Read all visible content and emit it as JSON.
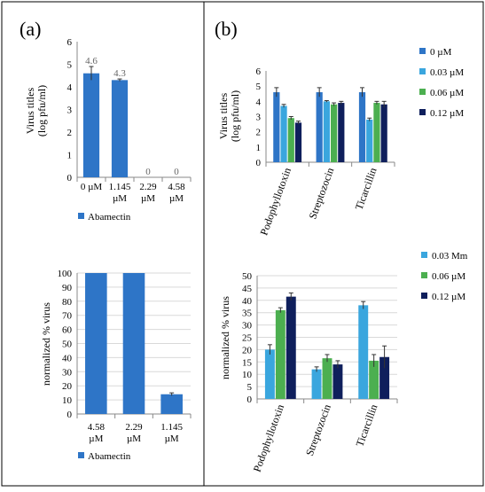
{
  "colors": {
    "blue": "#2E75C7",
    "lightblue": "#3AA6DE",
    "green": "#4CAF50",
    "navy": "#0F1F5C",
    "border": "#000000",
    "axis": "#888888",
    "grid": "#D9D9D9",
    "datalabel": "#666666"
  },
  "panels": {
    "a_label": "(a)",
    "b_label": "(b)"
  },
  "chart_data": [
    {
      "id": "a_top",
      "type": "bar",
      "ylabel": [
        "Virus titles",
        "(log pfu/ml)"
      ],
      "ylim": [
        0,
        6
      ],
      "yticks": [
        0,
        1,
        2,
        3,
        4,
        5,
        6
      ],
      "grid": false,
      "categories": [
        [
          "0 µM",
          ""
        ],
        [
          "1.145",
          "µM"
        ],
        [
          "2.29",
          "µM"
        ],
        [
          "4.58",
          "µM"
        ]
      ],
      "series": [
        {
          "name": "Abamectin",
          "color": "blue",
          "values": [
            4.6,
            4.3,
            0,
            0
          ],
          "errors": [
            0.3,
            0.05,
            0,
            0
          ]
        }
      ],
      "data_labels": [
        "4.6",
        "4.3",
        "0",
        "0"
      ],
      "legend": "bottom"
    },
    {
      "id": "a_bottom",
      "type": "bar",
      "ylabel": [
        "normalized % virus"
      ],
      "ylim": [
        0,
        100
      ],
      "yticks": [
        0,
        10,
        20,
        30,
        40,
        50,
        60,
        70,
        80,
        90,
        100
      ],
      "grid": true,
      "categories": [
        [
          "4.58",
          "µM"
        ],
        [
          "2.29",
          "µM"
        ],
        [
          "1.145",
          "µM"
        ]
      ],
      "series": [
        {
          "name": "Abamectin",
          "color": "blue",
          "values": [
            100,
            100,
            14
          ],
          "errors": [
            0,
            0,
            1
          ]
        }
      ],
      "legend": "bottom"
    },
    {
      "id": "b_top",
      "type": "bar",
      "ylabel": [
        "Virus titles",
        "(log pfu/ml)"
      ],
      "ylim": [
        0,
        6
      ],
      "yticks": [
        0,
        1,
        2,
        3,
        4,
        5,
        6
      ],
      "grid": false,
      "categories": [
        "Podophyllotoxin",
        "Streptozocin",
        "Ticarcillin"
      ],
      "series": [
        {
          "name": "0 µM",
          "color": "blue",
          "values": [
            4.6,
            4.6,
            4.6
          ],
          "errors": [
            0.3,
            0.3,
            0.3
          ]
        },
        {
          "name": "0.03 µM",
          "color": "lightblue",
          "values": [
            3.7,
            4.0,
            2.8
          ],
          "errors": [
            0.1,
            0.05,
            0.1
          ]
        },
        {
          "name": "0.06 µM",
          "color": "green",
          "values": [
            2.9,
            3.8,
            3.9
          ],
          "errors": [
            0.1,
            0.1,
            0.1
          ]
        },
        {
          "name": "0.12 µM",
          "color": "navy",
          "values": [
            2.6,
            3.9,
            3.8
          ],
          "errors": [
            0.1,
            0.1,
            0.2
          ]
        }
      ],
      "legend": "right"
    },
    {
      "id": "b_bottom",
      "type": "bar",
      "ylabel": [
        "normalized % virus"
      ],
      "ylim": [
        0,
        50
      ],
      "yticks": [
        0,
        5,
        10,
        15,
        20,
        25,
        30,
        35,
        40,
        45,
        50
      ],
      "grid": true,
      "categories": [
        "Podophyllotoxin",
        "Streptozocin",
        "Ticarcillin"
      ],
      "series": [
        {
          "name": "0.03 Mm",
          "color": "lightblue",
          "values": [
            20,
            12,
            38
          ],
          "errors": [
            2,
            1,
            1.5
          ]
        },
        {
          "name": "0.06 µM",
          "color": "green",
          "values": [
            36,
            16.5,
            15.5
          ],
          "errors": [
            1,
            1.5,
            2.5
          ]
        },
        {
          "name": "0.12 µM",
          "color": "navy",
          "values": [
            41.5,
            14,
            17
          ],
          "errors": [
            1.5,
            1.5,
            4.5
          ]
        }
      ],
      "legend": "right"
    }
  ]
}
